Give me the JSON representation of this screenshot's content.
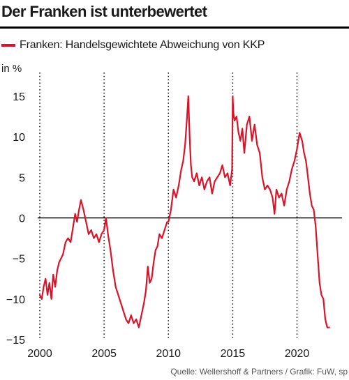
{
  "header": {
    "title": "Der Franken ist unterbewertet"
  },
  "legend": {
    "label": "Franken: Handelsgewichtete Abweichung von KKP",
    "color": "#d7152a"
  },
  "unit": "in %",
  "source": "Quelle: Wellershoff & Partners / Grafik: FuW, sp",
  "chart_data": {
    "type": "line",
    "title": "Der Franken ist unterbewertet",
    "xlabel": "",
    "ylabel": "in %",
    "xlim": [
      2000,
      2023.5
    ],
    "ylim": [
      -15,
      15
    ],
    "xticks": [
      2000,
      2005,
      2010,
      2015,
      2020
    ],
    "yticks": [
      15,
      10,
      5,
      0,
      -5,
      -10,
      -15
    ],
    "grid": "vertical dotted",
    "legend_position": "top-left",
    "series": [
      {
        "name": "Franken: Handelsgewichtete Abweichung von KKP",
        "color": "#d7152a",
        "x": [
          2000.0,
          2000.15,
          2000.3,
          2000.45,
          2000.6,
          2000.75,
          2000.9,
          2001.05,
          2001.2,
          2001.35,
          2001.5,
          2001.65,
          2001.8,
          2002.0,
          2002.2,
          2002.4,
          2002.6,
          2002.75,
          2002.9,
          2003.05,
          2003.2,
          2003.4,
          2003.6,
          2003.8,
          2004.0,
          2004.2,
          2004.4,
          2004.6,
          2004.8,
          2005.0,
          2005.15,
          2005.3,
          2005.5,
          2005.7,
          2005.9,
          2006.1,
          2006.3,
          2006.5,
          2006.7,
          2006.9,
          2007.1,
          2007.3,
          2007.5,
          2007.7,
          2007.9,
          2008.1,
          2008.25,
          2008.4,
          2008.55,
          2008.7,
          2008.85,
          2009.0,
          2009.15,
          2009.3,
          2009.5,
          2009.7,
          2009.9,
          2010.0,
          2010.2,
          2010.4,
          2010.6,
          2010.8,
          2011.0,
          2011.15,
          2011.3,
          2011.45,
          2011.55,
          2011.65,
          2011.75,
          2011.85,
          2012.0,
          2012.2,
          2012.4,
          2012.6,
          2012.8,
          2013.0,
          2013.2,
          2013.4,
          2013.6,
          2013.8,
          2014.0,
          2014.2,
          2014.4,
          2014.6,
          2014.8,
          2014.95,
          2015.0,
          2015.05,
          2015.15,
          2015.3,
          2015.45,
          2015.6,
          2015.75,
          2015.9,
          2016.1,
          2016.3,
          2016.5,
          2016.7,
          2016.9,
          2017.1,
          2017.3,
          2017.5,
          2017.7,
          2017.9,
          2018.1,
          2018.25,
          2018.4,
          2018.6,
          2018.8,
          2019.0,
          2019.2,
          2019.4,
          2019.6,
          2019.8,
          2020.0,
          2020.2,
          2020.4,
          2020.55,
          2020.7,
          2020.85,
          2021.0,
          2021.15,
          2021.3,
          2021.45,
          2021.6,
          2021.75,
          2021.9,
          2022.05,
          2022.2,
          2022.35,
          2022.5
        ],
        "values": [
          -9.5,
          -10.0,
          -8.5,
          -7.5,
          -9.5,
          -8.0,
          -10.0,
          -7.0,
          -8.5,
          -6.5,
          -5.5,
          -5.0,
          -4.5,
          -3.0,
          -2.5,
          -3.0,
          -1.0,
          0.5,
          -0.5,
          1.0,
          2.2,
          1.0,
          -0.5,
          -2.0,
          -1.5,
          -2.5,
          -2.0,
          -3.0,
          -2.0,
          -1.5,
          0.0,
          -2.0,
          -4.0,
          -6.5,
          -8.5,
          -9.5,
          -10.5,
          -11.5,
          -12.5,
          -13.0,
          -12.0,
          -13.0,
          -12.5,
          -13.5,
          -12.0,
          -10.5,
          -9.0,
          -6.0,
          -8.0,
          -7.5,
          -5.5,
          -4.0,
          -3.5,
          -2.0,
          -2.5,
          -1.5,
          -0.5,
          -0.5,
          1.0,
          3.5,
          2.5,
          4.0,
          6.0,
          7.0,
          9.0,
          12.5,
          15.0,
          10.0,
          6.5,
          5.0,
          4.5,
          5.5,
          4.0,
          5.0,
          3.5,
          4.5,
          5.0,
          3.0,
          4.5,
          5.0,
          5.5,
          6.5,
          5.0,
          5.5,
          4.0,
          6.0,
          15.0,
          13.0,
          12.0,
          12.5,
          10.5,
          9.5,
          11.0,
          8.0,
          11.5,
          12.5,
          9.5,
          11.5,
          9.0,
          8.0,
          5.0,
          3.5,
          4.0,
          3.5,
          2.5,
          0.5,
          3.5,
          2.5,
          3.0,
          1.5,
          3.5,
          4.5,
          6.0,
          7.0,
          8.5,
          10.5,
          9.5,
          8.0,
          7.0,
          5.0,
          3.0,
          1.5,
          1.0,
          -1.0,
          -4.5,
          -8.0,
          -9.5,
          -10.0,
          -12.5,
          -13.5,
          -13.5
        ]
      }
    ]
  }
}
